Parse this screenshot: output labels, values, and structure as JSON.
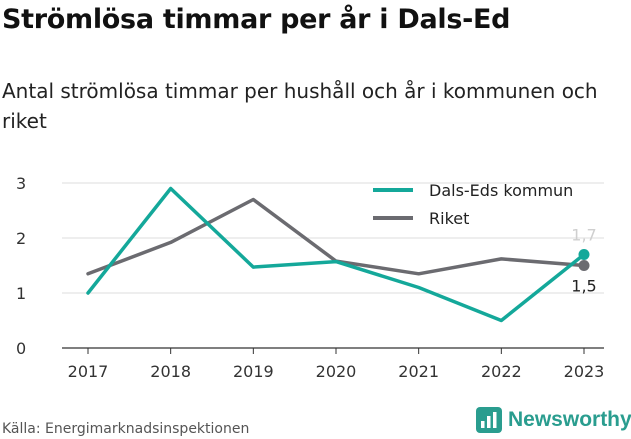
{
  "header": {
    "title": "Strömlösa timmar per år i Dals-Ed",
    "subtitle": "Antal strömlösa timmar per hushåll och år i kommunen och riket"
  },
  "footer": {
    "source": "Källa: Energimarknadsinspektionen",
    "brand": "Newsworthy",
    "brand_icon": "bar-chart-logo-icon"
  },
  "colors": {
    "dals_ed": "#14a89a",
    "riket": "#6b6b70",
    "grid": "#dddddd",
    "brand": "#2a9d8f"
  },
  "chart_data": {
    "type": "line",
    "x": [
      2017,
      2018,
      2019,
      2020,
      2021,
      2022,
      2023
    ],
    "series": [
      {
        "name": "Dals-Eds kommun",
        "values": [
          1.0,
          2.9,
          1.47,
          1.57,
          1.1,
          0.5,
          1.7
        ],
        "end_label": "1,7"
      },
      {
        "name": "Riket",
        "values": [
          1.35,
          1.92,
          2.7,
          1.58,
          1.35,
          1.62,
          1.5
        ],
        "end_label": "1,5"
      }
    ],
    "yticks": [
      0,
      1,
      2,
      3
    ],
    "ylim": [
      0,
      3
    ],
    "grid": true,
    "legend": "top-right"
  }
}
